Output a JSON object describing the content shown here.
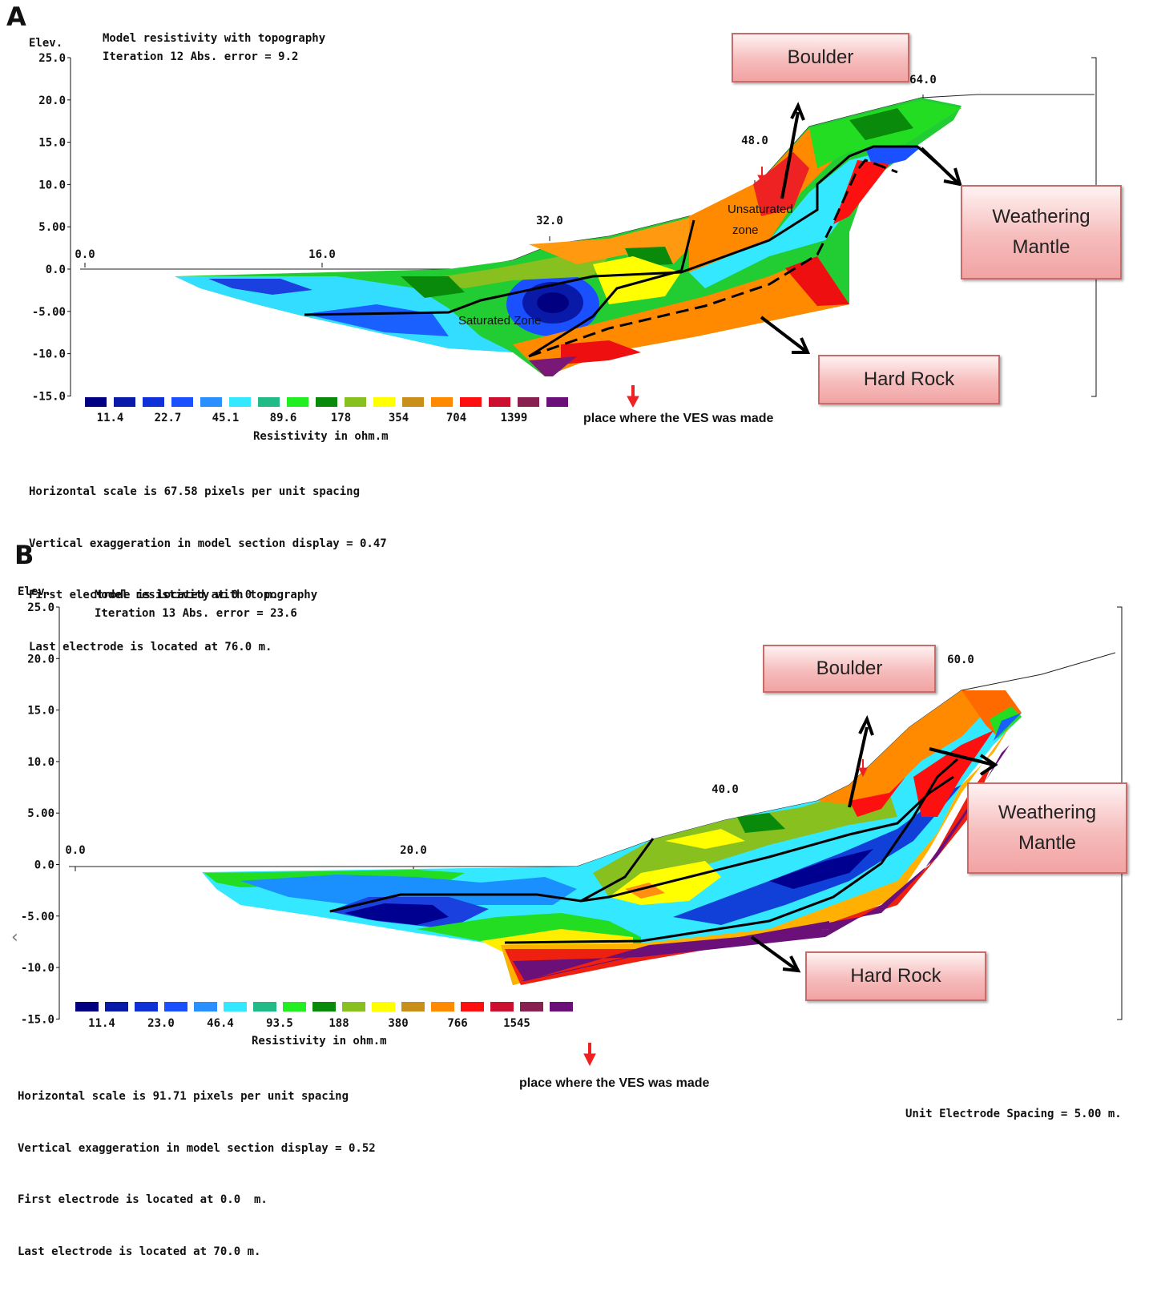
{
  "panels": {
    "a": {
      "label": "A",
      "elev_label": "Elev.",
      "model_title": "Model resistivity with topography",
      "iteration_text": "Iteration 12 Abs. error = 9.2",
      "elev_ticks": [
        "25.0",
        "20.0",
        "15.0",
        "10.0",
        "5.00",
        "0.0",
        "-5.00",
        "-10.0",
        "-15.0"
      ],
      "distance_ticks": [
        "0.0",
        "16.0",
        "32.0",
        "48.0",
        "64.0"
      ],
      "colorbar_values": [
        "11.4",
        "22.7",
        "45.1",
        "89.6",
        "178",
        "354",
        "704",
        "1399"
      ],
      "colorbar_title": "Resistivity in ohm.m",
      "info_lines": [
        "Horizontal scale is 67.58 pixels per unit spacing",
        "Vertical exaggeration in model section display = 0.47",
        "First electrode is located at 0.0  m.",
        "Last electrode is located at 76.0 m."
      ],
      "callouts": {
        "boulder": "Boulder",
        "weathering_line1": "Weathering",
        "weathering_line2": "Mantle",
        "hard_rock": "Hard Rock"
      },
      "zones": {
        "unsaturated_line1": "Unsaturated",
        "unsaturated_line2": "zone",
        "saturated": "Saturated Zone"
      },
      "ves_note": "place where the VES was made"
    },
    "b": {
      "label": "B",
      "elev_label": "Elev.",
      "model_title": "Model resistivity with topography",
      "iteration_text": "Iteration 13 Abs. error = 23.6",
      "elev_ticks": [
        "25.0",
        "20.0",
        "15.0",
        "10.0",
        "5.00",
        "0.0",
        "-5.00",
        "-10.0",
        "-15.0"
      ],
      "distance_ticks": [
        "0.0",
        "20.0",
        "40.0",
        "60.0"
      ],
      "colorbar_values": [
        "11.4",
        "23.0",
        "46.4",
        "93.5",
        "188",
        "380",
        "766",
        "1545"
      ],
      "colorbar_title": "Resistivity in ohm.m",
      "info_lines": [
        "Horizontal scale is 91.71 pixels per unit spacing",
        "Vertical exaggeration in model section display = 0.52",
        "First electrode is located at 0.0  m.",
        "Last electrode is located at 70.0 m."
      ],
      "unit_spacing": "Unit Electrode Spacing = 5.00 m.",
      "callouts": {
        "boulder": "Boulder",
        "weathering_line1": "Weathering",
        "weathering_line2": "Mantle",
        "hard_rock": "Hard Rock"
      },
      "ves_note": "place where the VES was made"
    }
  },
  "colorbar_colors": [
    "#000080",
    "#0a1aa8",
    "#1030d8",
    "#1a50ff",
    "#2a90ff",
    "#33e8ff",
    "#22bb88",
    "#22ee22",
    "#0a8a0a",
    "#88c020",
    "#ffff00",
    "#c8901a",
    "#ff8a00",
    "#ff1010",
    "#cc1030",
    "#882050",
    "#6a1078"
  ],
  "colors": {
    "ves_arrow": "#ee2222",
    "callout_border": "#c76b6b",
    "interpretation_line": "#000000"
  }
}
